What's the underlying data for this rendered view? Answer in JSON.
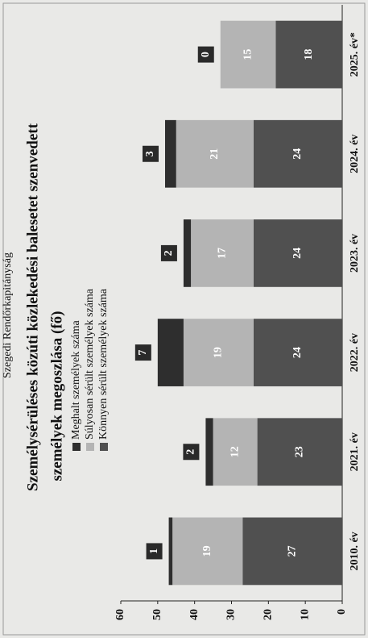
{
  "source": "Szegedi Rendőrkapitányság",
  "chart_data": {
    "type": "stacked_bar",
    "title": "Személysérüléses közúti közlekedési balesetet szenvedett",
    "subtitle": "személyek megoszlása (fő)",
    "categories": [
      "2010. év",
      "2021. év",
      "2022. év",
      "2023. év",
      "2024. év",
      "2025. év*"
    ],
    "series": [
      {
        "name": "Könnyen sérült személyek száma",
        "color": "#505050",
        "values": [
          27,
          23,
          24,
          24,
          24,
          18
        ]
      },
      {
        "name": "Súlyosan sérült személyek száma",
        "color": "#b4b4b4",
        "values": [
          19,
          12,
          19,
          17,
          21,
          15
        ]
      },
      {
        "name": "Meghalt személyek száma",
        "color": "#2e2e2e",
        "values": [
          1,
          2,
          7,
          2,
          3,
          0
        ]
      }
    ],
    "ylim": [
      0,
      60
    ],
    "yticks": [
      0,
      10,
      20,
      30,
      40,
      50,
      60
    ]
  }
}
